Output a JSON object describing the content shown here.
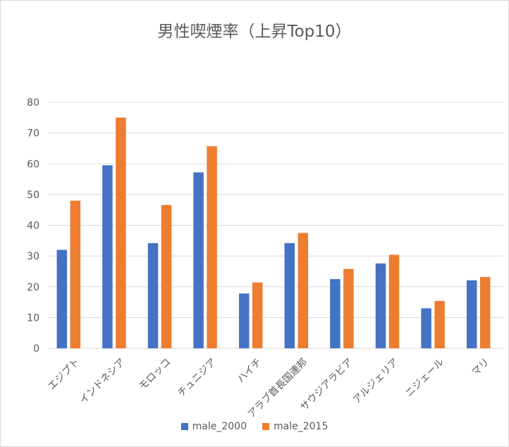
{
  "chart_data": {
    "type": "bar",
    "title": "男性喫煙率（上昇Top10）",
    "categories": [
      "エジプト",
      "インドネシア",
      "モロッコ",
      "チュニジア",
      "ハイチ",
      "アラブ首長国連邦",
      "サウジアラビア",
      "アルジェリア",
      "ニジェール",
      "マリ"
    ],
    "series": [
      {
        "name": "male_2000",
        "color": "#4472C4",
        "values": [
          32.0,
          59.5,
          34.2,
          57.2,
          17.8,
          34.2,
          22.5,
          27.6,
          13.0,
          22.1
        ]
      },
      {
        "name": "male_2015",
        "color": "#ED7D31",
        "values": [
          48.0,
          75.0,
          46.6,
          65.7,
          21.4,
          37.5,
          25.8,
          30.4,
          15.4,
          23.2
        ]
      }
    ],
    "ylim": [
      0,
      80
    ],
    "yticks": [
      0,
      10,
      20,
      30,
      40,
      50,
      60,
      70,
      80
    ],
    "grid": true,
    "legend": "bottom"
  }
}
